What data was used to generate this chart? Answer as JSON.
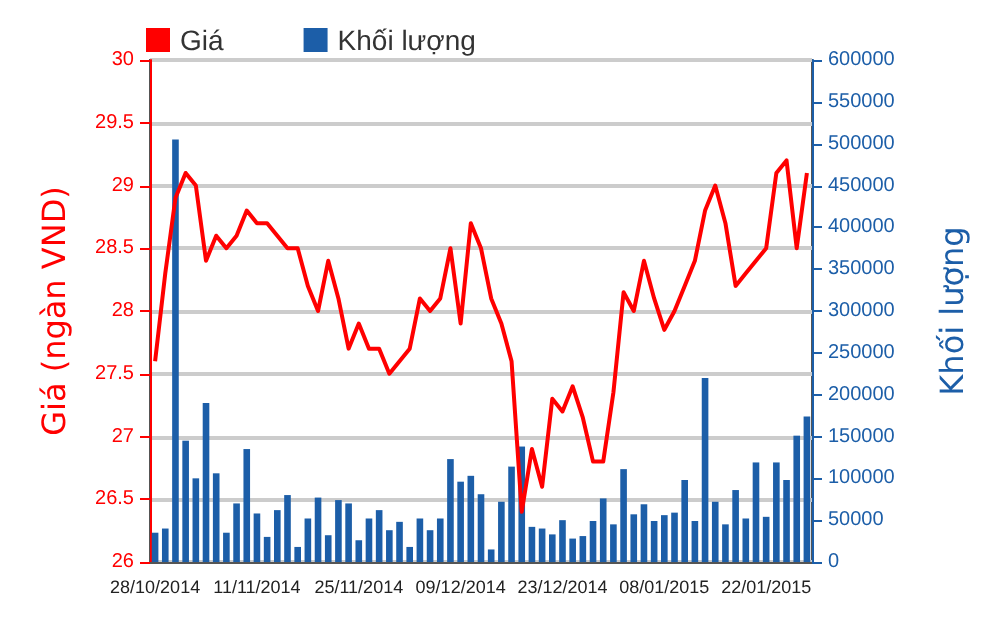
{
  "chart_data": {
    "type": "bar",
    "ylabel": "Giá (ngàn VND)",
    "y2label": "Khối lượng",
    "categories": [
      "28/10/2014",
      null,
      null,
      null,
      null,
      null,
      null,
      null,
      null,
      null,
      "11/11/2014",
      null,
      null,
      null,
      null,
      null,
      null,
      null,
      null,
      null,
      "25/11/2014",
      null,
      null,
      null,
      null,
      null,
      null,
      null,
      null,
      null,
      "09/12/2014",
      null,
      null,
      null,
      null,
      null,
      null,
      null,
      null,
      null,
      "23/12/2014",
      null,
      null,
      null,
      null,
      null,
      null,
      null,
      null,
      null,
      "08/01/2015",
      null,
      null,
      null,
      null,
      null,
      null,
      null,
      null,
      null,
      "22/01/2015",
      null,
      null,
      null,
      null
    ],
    "series": [
      {
        "name": "Giá",
        "type": "line",
        "axis": "y",
        "color": "#ff0000",
        "values": [
          27.6,
          28.3,
          28.9,
          29.1,
          29.0,
          28.4,
          28.6,
          28.5,
          28.6,
          28.8,
          28.7,
          28.7,
          28.6,
          28.5,
          28.5,
          28.2,
          28.0,
          28.4,
          28.1,
          27.7,
          27.9,
          27.7,
          27.7,
          27.5,
          27.6,
          27.7,
          28.1,
          28.0,
          28.1,
          28.5,
          27.9,
          28.7,
          28.5,
          28.1,
          27.9,
          27.6,
          26.4,
          26.9,
          26.6,
          27.3,
          27.2,
          27.4,
          27.15,
          26.8,
          26.8,
          27.35,
          28.15,
          28.0,
          28.4,
          28.1,
          27.85,
          28.0,
          28.2,
          28.4,
          28.8,
          29.0,
          28.7,
          28.2,
          28.3,
          28.4,
          28.5,
          29.1,
          29.2,
          28.5,
          29.1
        ]
      },
      {
        "name": "Khối lượng",
        "axis": "y2",
        "color": "#1c5ea8",
        "values": [
          35000,
          40000,
          505000,
          145000,
          100000,
          190000,
          106000,
          35000,
          70000,
          135000,
          58000,
          30000,
          62000,
          80000,
          18000,
          52000,
          77000,
          32000,
          74000,
          70000,
          26000,
          52000,
          62000,
          38000,
          48000,
          18000,
          52000,
          38000,
          52000,
          123000,
          96000,
          103000,
          81000,
          15000,
          72000,
          114000,
          138000,
          42000,
          40000,
          33000,
          50000,
          28000,
          31000,
          49000,
          76000,
          45000,
          111000,
          57000,
          69000,
          49000,
          56000,
          59000,
          98000,
          49000,
          220000,
          72000,
          45000,
          86000,
          52000,
          119000,
          54000,
          119000,
          98000,
          151000,
          174000
        ]
      }
    ],
    "ylim": [
      26,
      30
    ],
    "yticks": [
      26,
      26.5,
      27,
      27.5,
      28,
      28.5,
      29,
      29.5,
      30
    ],
    "y2lim": [
      0,
      600000
    ],
    "y2ticks": [
      0,
      50000,
      100000,
      150000,
      200000,
      250000,
      300000,
      350000,
      400000,
      450000,
      500000,
      550000,
      600000
    ],
    "grid": "y",
    "legend": "top left",
    "marker": "none"
  }
}
